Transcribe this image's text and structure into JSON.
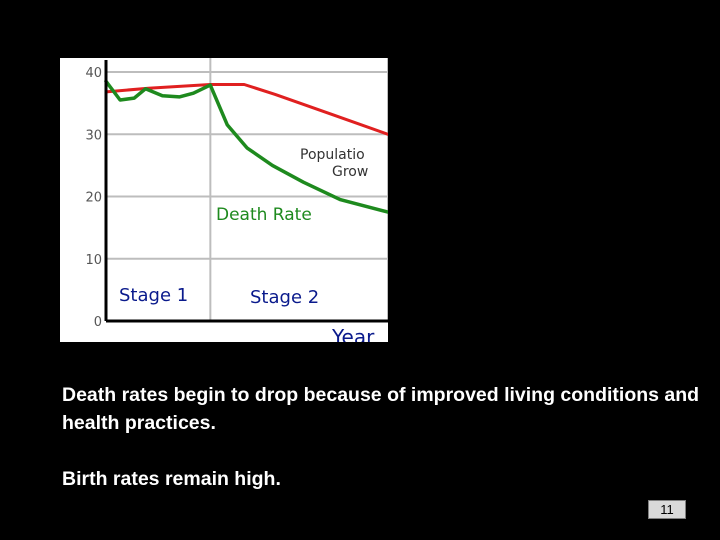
{
  "chart_data": {
    "type": "line",
    "y_ticks": [
      "40",
      "30",
      "20",
      "10",
      "0"
    ],
    "ylim": [
      0,
      40
    ],
    "xlim": [
      0,
      100
    ],
    "x_axis_label": "Year",
    "grid": true,
    "stages": [
      {
        "label": "Stage 1",
        "x_range": [
          0,
          37
        ]
      },
      {
        "label": "Stage 2",
        "x_range": [
          37,
          100
        ]
      }
    ],
    "series": [
      {
        "color": "#e02020",
        "points": [
          [
            0,
            36.8
          ],
          [
            15,
            37.4
          ],
          [
            37,
            38.0
          ],
          [
            49,
            38.0
          ],
          [
            60,
            36.4
          ],
          [
            80,
            33.2
          ],
          [
            100,
            30.0
          ]
        ]
      },
      {
        "color": "#1e8a1e",
        "points": [
          [
            0,
            38.5
          ],
          [
            5,
            35.5
          ],
          [
            10,
            35.8
          ],
          [
            14,
            37.3
          ],
          [
            20,
            36.2
          ],
          [
            26,
            36.0
          ],
          [
            31,
            36.6
          ],
          [
            37,
            37.9
          ],
          [
            43,
            31.5
          ],
          [
            50,
            27.8
          ],
          [
            59,
            25.0
          ],
          [
            70,
            22.3
          ],
          [
            83,
            19.5
          ],
          [
            100,
            17.5
          ]
        ]
      }
    ],
    "annotations": {
      "population_growth": [
        "Populatio",
        "Grow"
      ],
      "death_rate": "Death Rate"
    }
  },
  "caption": {
    "line1": "Death rates begin to drop because of  improved living conditions and health practices.",
    "line2": "Birth rates remain high."
  },
  "slide_number": "11"
}
